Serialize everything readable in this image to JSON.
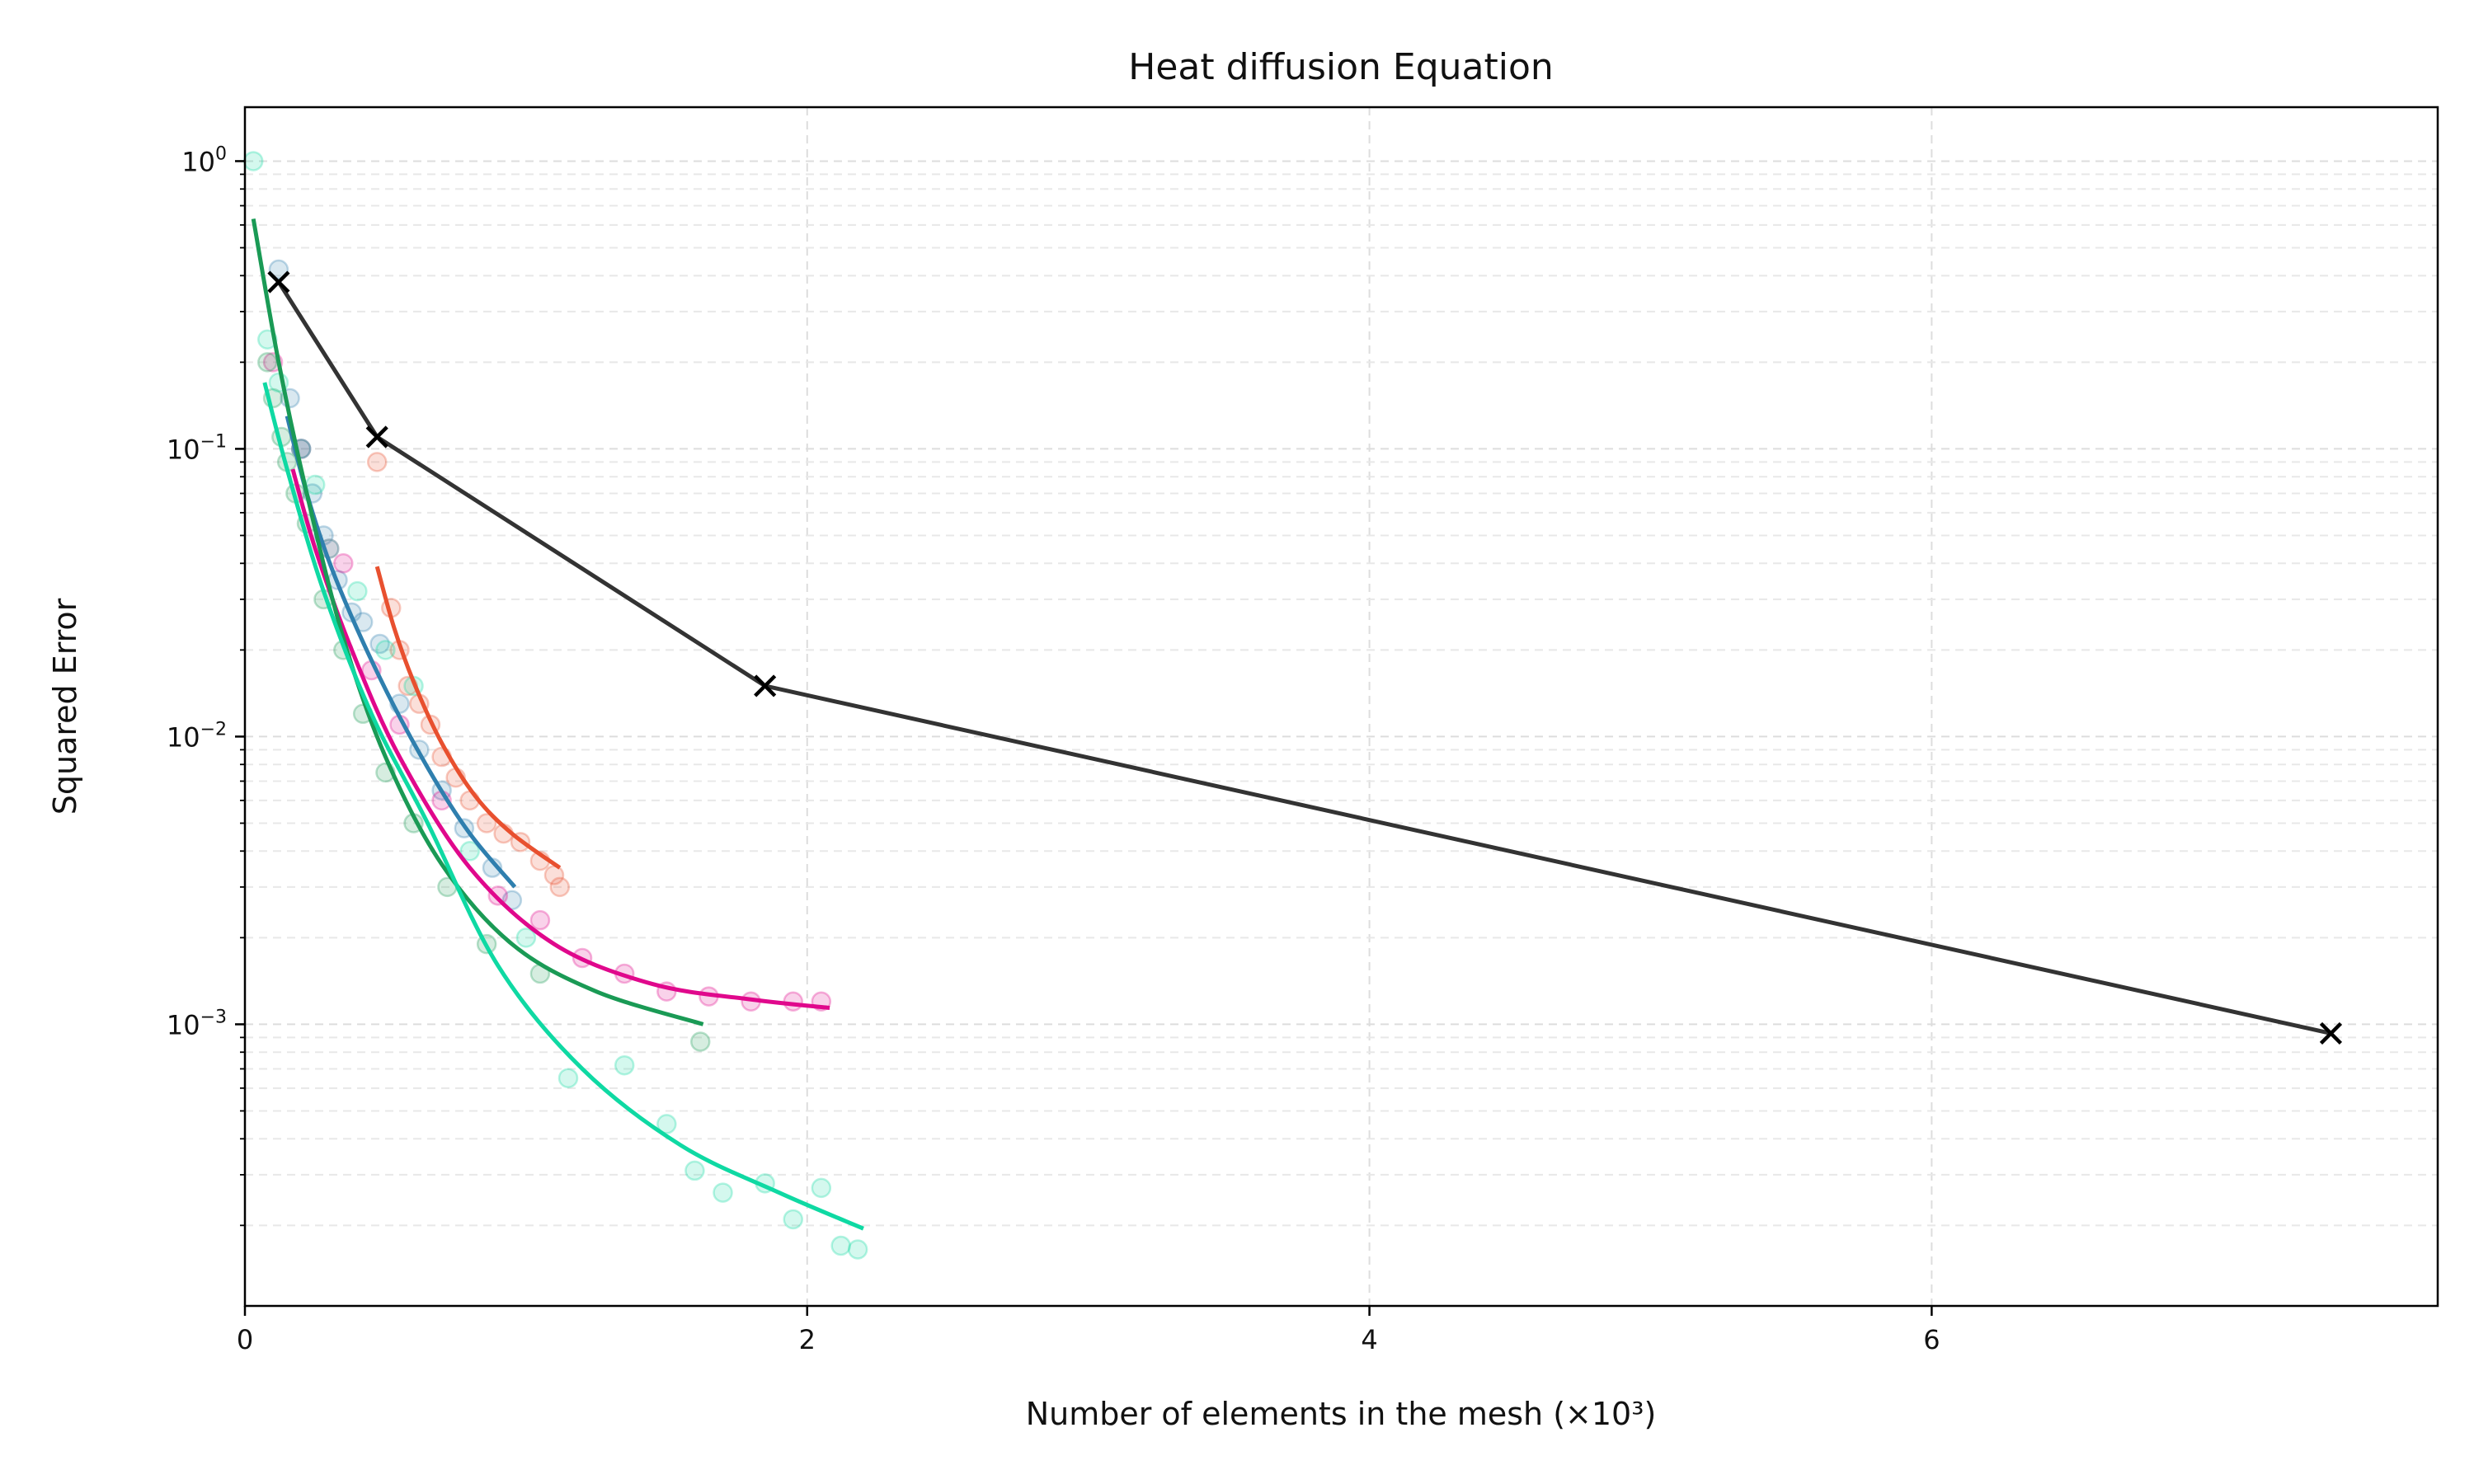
{
  "chart_data": {
    "type": "line",
    "title": "Heat diffusion Equation",
    "xlabel": "Number of elements in the mesh (×10³)",
    "ylabel": "Squared Error",
    "xlim": [
      0,
      7.8
    ],
    "ylim": [
      0.000105,
      1.54
    ],
    "yscale": "log",
    "grid": true,
    "x_ticks": [
      {
        "value": 0,
        "label": "0"
      },
      {
        "value": 2,
        "label": "2"
      },
      {
        "value": 4,
        "label": "4"
      },
      {
        "value": 6,
        "label": "6"
      }
    ],
    "y_ticks": [
      {
        "value": 1,
        "base": "10",
        "exp": "0"
      },
      {
        "value": 0.1,
        "base": "10",
        "exp": "−1"
      },
      {
        "value": 0.01,
        "base": "10",
        "exp": "−2"
      },
      {
        "value": 0.001,
        "base": "10",
        "exp": "−3"
      }
    ],
    "series": [
      {
        "kind": "line-markers",
        "color": "#333333",
        "marker": "x",
        "x": [
          0.12,
          0.47,
          1.85,
          7.42
        ],
        "y": [
          0.38,
          0.11,
          0.015,
          0.00093
        ]
      },
      {
        "kind": "fit",
        "color": "#e8502f",
        "x": [
          0.47,
          0.53,
          0.6,
          0.7,
          0.82,
          0.95,
          1.12
        ],
        "y": [
          0.039,
          0.024,
          0.0155,
          0.0095,
          0.0062,
          0.0046,
          0.0035
        ]
      },
      {
        "kind": "fit",
        "color": "#2f7fae",
        "x": [
          0.15,
          0.22,
          0.32,
          0.48,
          0.65,
          0.8,
          0.96
        ],
        "y": [
          0.13,
          0.07,
          0.036,
          0.016,
          0.0078,
          0.0046,
          0.003
        ]
      },
      {
        "kind": "fit",
        "color": "#e0088c",
        "x": [
          0.17,
          0.25,
          0.38,
          0.55,
          0.8,
          1.1,
          1.45,
          1.8,
          2.08
        ],
        "y": [
          0.085,
          0.045,
          0.02,
          0.0085,
          0.0035,
          0.0019,
          0.00138,
          0.00122,
          0.00114
        ],
        "name": ""
      },
      {
        "kind": "fit",
        "color": "#1a9a55",
        "x": [
          0.03,
          0.12,
          0.22,
          0.35,
          0.5,
          0.7,
          0.95,
          1.25,
          1.63
        ],
        "y": [
          0.63,
          0.2,
          0.07,
          0.022,
          0.0085,
          0.0036,
          0.0019,
          0.0013,
          0.001
        ]
      },
      {
        "kind": "fit",
        "color": "#0fd9a3",
        "x": [
          0.07,
          0.15,
          0.28,
          0.45,
          0.65,
          0.9,
          1.2,
          1.55,
          1.9,
          2.2
        ],
        "y": [
          0.17,
          0.085,
          0.032,
          0.012,
          0.005,
          0.0016,
          0.0007,
          0.00038,
          0.00026,
          0.000195
        ]
      }
    ],
    "scatter": [
      {
        "color": "#e8502f",
        "x": [
          0.47,
          0.52,
          0.55,
          0.58,
          0.62,
          0.66,
          0.7,
          0.75,
          0.8,
          0.86,
          0.92,
          0.98,
          1.05,
          1.1,
          1.12
        ],
        "y": [
          0.09,
          0.028,
          0.02,
          0.015,
          0.013,
          0.011,
          0.0085,
          0.0072,
          0.006,
          0.005,
          0.0046,
          0.0043,
          0.0037,
          0.0033,
          0.003
        ]
      },
      {
        "color": "#2f7fae",
        "x": [
          0.12,
          0.16,
          0.2,
          0.24,
          0.28,
          0.33,
          0.38,
          0.42,
          0.48,
          0.55,
          0.62,
          0.7,
          0.78,
          0.88,
          0.95
        ],
        "y": [
          0.42,
          0.15,
          0.1,
          0.07,
          0.05,
          0.035,
          0.027,
          0.025,
          0.021,
          0.013,
          0.009,
          0.0065,
          0.0048,
          0.0035,
          0.0027
        ]
      },
      {
        "color": "#e0088c",
        "x": [
          0.1,
          0.2,
          0.3,
          0.35,
          0.45,
          0.55,
          0.7,
          0.9,
          1.05,
          1.2,
          1.35,
          1.5,
          1.65,
          1.8,
          1.95,
          2.05
        ],
        "y": [
          0.2,
          0.1,
          0.045,
          0.04,
          0.017,
          0.011,
          0.006,
          0.0028,
          0.0023,
          0.0017,
          0.0015,
          0.0013,
          0.00125,
          0.0012,
          0.0012,
          0.0012
        ]
      },
      {
        "color": "#1a9a55",
        "x": [
          0.08,
          0.1,
          0.13,
          0.15,
          0.18,
          0.22,
          0.28,
          0.35,
          0.42,
          0.5,
          0.6,
          0.72,
          0.86,
          1.05,
          1.62
        ],
        "y": [
          0.2,
          0.15,
          0.11,
          0.09,
          0.07,
          0.055,
          0.03,
          0.02,
          0.012,
          0.0075,
          0.005,
          0.003,
          0.0019,
          0.0015,
          0.00087
        ]
      },
      {
        "color": "#0fd9a3",
        "x": [
          0.03,
          0.08,
          0.12,
          0.2,
          0.25,
          0.3,
          0.4,
          0.5,
          0.6,
          0.8,
          1.0,
          1.15,
          1.35,
          1.5,
          1.6,
          1.7,
          1.85,
          1.95,
          2.05,
          2.12,
          2.18
        ],
        "y": [
          1.0,
          0.24,
          0.17,
          0.1,
          0.075,
          0.045,
          0.032,
          0.02,
          0.015,
          0.004,
          0.002,
          0.00065,
          0.00072,
          0.00045,
          0.00031,
          0.00026,
          0.00028,
          0.00021,
          0.00027,
          0.00017,
          0.000165
        ]
      }
    ]
  }
}
